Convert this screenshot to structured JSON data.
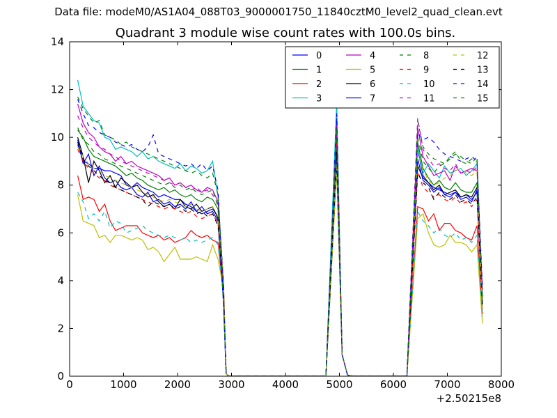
{
  "figure": {
    "suptitle": "Data file: modeM0/AS1A04_088T03_9000001750_11840cztM0_level2_quad_clean.evt"
  },
  "colors": {
    "blue": "#0000ff",
    "green": "#008000",
    "red": "#ff0000",
    "cyan": "#00bfbf",
    "magenta": "#bf00bf",
    "olive": "#bfbf00",
    "black": "#000000"
  },
  "chart_data": {
    "type": "line",
    "title": "Quadrant 3 module wise count rates with 100.0s bins.",
    "xlabel": "",
    "ylabel": "",
    "x_offset_label": "+2.50215e8",
    "xlim": [
      0,
      8000
    ],
    "ylim": [
      0,
      14
    ],
    "x_ticks": [
      0,
      1000,
      2000,
      3000,
      4000,
      5000,
      6000,
      7000,
      8000
    ],
    "y_ticks": [
      0,
      2,
      4,
      6,
      8,
      10,
      12,
      14
    ],
    "x_tick_labels": [
      "0",
      "1000",
      "2000",
      "3000",
      "4000",
      "5000",
      "6000",
      "7000",
      "8000"
    ],
    "y_tick_labels": [
      "0",
      "2",
      "4",
      "6",
      "8",
      "10",
      "12",
      "14"
    ],
    "legend_position": "top-right",
    "legend_columns": 4,
    "x": [
      150,
      250,
      350,
      450,
      550,
      650,
      750,
      850,
      950,
      1050,
      1150,
      1250,
      1350,
      1450,
      1550,
      1650,
      1750,
      1850,
      1950,
      2050,
      2150,
      2250,
      2350,
      2450,
      2550,
      2650,
      2750,
      2850,
      2950,
      3050,
      3150,
      3250,
      3350,
      3450,
      3550,
      3650,
      3750,
      3850,
      3950,
      4050,
      4150,
      4250,
      4350,
      4450,
      4550,
      4650,
      4750,
      4850,
      4950,
      5050,
      5150,
      5250,
      5350,
      5450,
      5550,
      5650,
      5750,
      5850,
      5950,
      6050,
      6150,
      6250,
      6350,
      6450,
      6550,
      6650,
      6750,
      6850,
      6950,
      7050,
      7150,
      7250,
      7350,
      7450,
      7550,
      7650
    ],
    "segments": {
      "active1": [
        150,
        2750
      ],
      "drop1_value": [
        4.0,
        0.1
      ],
      "quiet1": [
        2950,
        4750
      ],
      "peak_x": 4950,
      "post_peak_x": [
        5050,
        5150
      ],
      "quiet2": [
        5250,
        6250
      ],
      "active2": [
        6450,
        7550
      ],
      "end_x": 7650
    },
    "series": [
      {
        "name": "0",
        "color": "blue",
        "style": "solid",
        "active1": [
          9.7,
          9.0,
          8.9,
          8.7,
          8.7,
          8.6,
          8.6,
          8.5,
          8.4,
          8.0,
          7.9,
          8.1,
          7.9,
          7.8,
          7.7,
          7.5,
          7.6,
          7.5,
          7.4,
          7.4,
          7.2,
          7.1,
          6.9,
          6.8,
          6.9,
          7.0,
          6.7
        ],
        "peak": 10.8,
        "post_peak": [
          0.9,
          0.05
        ],
        "active2": [
          9.5,
          8.4,
          8.1,
          7.9,
          7.8,
          7.7,
          7.6,
          7.7,
          7.5,
          7.6,
          7.4,
          7.7
        ],
        "end": 3.0
      },
      {
        "name": "1",
        "color": "green",
        "style": "solid",
        "active1": [
          10.3,
          10.0,
          9.5,
          9.2,
          9.1,
          9.0,
          8.9,
          8.8,
          8.6,
          8.4,
          8.5,
          8.3,
          8.2,
          8.0,
          7.9,
          7.8,
          7.9,
          7.7,
          7.8,
          7.6,
          7.5,
          7.6,
          7.4,
          7.3,
          7.5,
          7.4,
          7.0
        ],
        "peak": 10.2,
        "post_peak": [
          0.9,
          0.05
        ],
        "active2": [
          9.8,
          8.7,
          8.3,
          8.0,
          8.2,
          7.9,
          7.8,
          8.1,
          7.8,
          7.7,
          7.7,
          8.1
        ],
        "end": 3.2
      },
      {
        "name": "2",
        "color": "red",
        "style": "solid",
        "active1": [
          8.4,
          7.4,
          7.5,
          7.4,
          6.9,
          7.2,
          6.5,
          6.1,
          6.2,
          6.3,
          6.3,
          6.3,
          6.0,
          5.9,
          5.8,
          5.9,
          5.7,
          5.8,
          5.6,
          5.7,
          5.8,
          6.1,
          5.9,
          5.8,
          5.9,
          5.7,
          5.6
        ],
        "peak": 9.5,
        "post_peak": [
          0.9,
          0.05
        ],
        "active2": [
          7.1,
          7.0,
          6.5,
          6.8,
          6.1,
          6.4,
          6.4,
          6.1,
          6.0,
          5.8,
          5.7,
          6.3
        ],
        "end": 2.6
      },
      {
        "name": "3",
        "color": "cyan",
        "style": "solid",
        "active1": [
          12.4,
          11.3,
          11.0,
          10.7,
          10.6,
          10.0,
          9.9,
          9.5,
          9.6,
          9.5,
          9.4,
          9.2,
          9.4,
          9.1,
          9.2,
          9.0,
          8.9,
          8.8,
          8.7,
          8.9,
          8.6,
          8.8,
          8.7,
          8.5,
          8.6,
          9.0,
          7.5
        ],
        "peak": 11.5,
        "post_peak": [
          0.9,
          0.05
        ],
        "active2": [
          9.6,
          8.5,
          8.9,
          8.6,
          8.3,
          8.8,
          8.5,
          8.6,
          8.7,
          8.4,
          8.6,
          8.9
        ],
        "end": 3.4
      },
      {
        "name": "4",
        "color": "magenta",
        "style": "solid",
        "active1": [
          11.4,
          10.6,
          10.2,
          10.0,
          9.6,
          9.4,
          9.3,
          9.0,
          9.2,
          8.9,
          9.0,
          8.8,
          8.7,
          8.6,
          8.5,
          8.4,
          8.2,
          8.3,
          8.0,
          8.1,
          7.9,
          8.0,
          7.8,
          7.7,
          7.9,
          7.8,
          7.3
        ],
        "peak": 10.5,
        "post_peak": [
          0.9,
          0.05
        ],
        "active2": [
          10.4,
          9.2,
          8.8,
          8.4,
          8.5,
          8.6,
          8.2,
          8.8,
          8.5,
          8.6,
          8.7,
          8.6
        ],
        "end": 3.6
      },
      {
        "name": "5",
        "color": "olive",
        "style": "solid",
        "active1": [
          7.6,
          6.5,
          6.4,
          6.3,
          5.8,
          5.9,
          5.6,
          5.9,
          5.9,
          5.8,
          5.7,
          5.8,
          5.7,
          5.3,
          5.4,
          5.2,
          4.8,
          5.1,
          5.4,
          4.9,
          4.9,
          4.9,
          5.0,
          4.9,
          4.8,
          5.5,
          4.9
        ],
        "peak": 8.6,
        "post_peak": [
          0.9,
          0.05
        ],
        "active2": [
          6.6,
          6.8,
          6.0,
          5.5,
          5.4,
          5.5,
          5.9,
          5.6,
          5.6,
          5.5,
          5.2,
          5.5
        ],
        "end": 2.2
      },
      {
        "name": "6",
        "color": "black",
        "style": "solid",
        "active1": [
          10.0,
          9.2,
          8.1,
          9.0,
          8.6,
          8.1,
          8.4,
          7.9,
          8.3,
          8.1,
          7.9,
          8.0,
          7.7,
          7.5,
          7.6,
          7.3,
          7.1,
          7.2,
          7.0,
          7.4,
          7.1,
          7.0,
          7.2,
          6.9,
          7.0,
          7.1,
          6.6
        ],
        "peak": 9.0,
        "post_peak": [
          0.9,
          0.05
        ],
        "active2": [
          8.8,
          8.3,
          8.1,
          7.8,
          8.0,
          7.6,
          7.7,
          7.8,
          7.5,
          7.6,
          7.5,
          7.9
        ],
        "end": 3.1
      },
      {
        "name": "7",
        "color": "blue",
        "style": "solid",
        "active1": [
          9.9,
          8.9,
          9.3,
          8.4,
          8.8,
          8.3,
          8.1,
          8.2,
          7.9,
          7.8,
          7.9,
          7.6,
          7.5,
          7.7,
          7.3,
          7.4,
          7.2,
          7.3,
          7.1,
          7.2,
          7.0,
          7.3,
          6.9,
          7.1,
          6.8,
          6.9,
          6.5
        ],
        "peak": 9.3,
        "post_peak": [
          0.9,
          0.05
        ],
        "active2": [
          9.1,
          8.2,
          8.0,
          7.7,
          7.9,
          7.6,
          7.5,
          7.7,
          7.4,
          7.5,
          7.3,
          7.8
        ],
        "end": 2.9
      },
      {
        "name": "8",
        "color": "green",
        "style": "dashed",
        "active1": [
          11.7,
          11.2,
          10.9,
          10.6,
          10.7,
          10.1,
          10.0,
          9.9,
          9.7,
          9.8,
          9.6,
          9.5,
          9.4,
          9.3,
          9.2,
          9.1,
          9.0,
          8.9,
          8.8,
          8.7,
          8.6,
          8.5,
          8.6,
          8.4,
          8.3,
          8.5,
          7.6
        ],
        "peak": 10.0,
        "post_peak": [
          0.9,
          0.05
        ],
        "active2": [
          10.7,
          9.6,
          9.3,
          9.1,
          9.0,
          8.9,
          9.2,
          9.4,
          9.0,
          8.9,
          9.1,
          9.0
        ],
        "end": 3.3
      },
      {
        "name": "9",
        "color": "red",
        "style": "dashed",
        "active1": [
          9.5,
          9.0,
          8.7,
          8.5,
          8.3,
          8.2,
          8.0,
          7.9,
          7.8,
          7.7,
          7.6,
          7.5,
          7.4,
          7.3,
          7.2,
          7.1,
          7.0,
          7.1,
          7.0,
          6.9,
          6.8,
          6.9,
          6.7,
          6.6,
          6.7,
          6.8,
          6.4
        ],
        "peak": 9.8,
        "post_peak": [
          0.9,
          0.05
        ],
        "active2": [
          8.6,
          7.9,
          7.7,
          7.5,
          7.6,
          7.4,
          7.3,
          7.5,
          7.2,
          7.3,
          7.1,
          7.4
        ],
        "end": 2.8
      },
      {
        "name": "10",
        "color": "cyan",
        "style": "dashed",
        "active1": [
          7.7,
          7.3,
          6.6,
          6.8,
          6.5,
          6.9,
          6.2,
          6.5,
          6.4,
          6.0,
          6.1,
          6.2,
          6.3,
          6.1,
          6.0,
          5.9,
          5.8,
          5.9,
          5.8,
          5.7,
          5.8,
          5.6,
          5.7,
          5.6,
          5.7,
          5.8,
          5.5
        ],
        "peak": 9.1,
        "post_peak": [
          0.9,
          0.05
        ],
        "active2": [
          6.9,
          6.5,
          6.3,
          6.0,
          6.2,
          5.9,
          5.8,
          6.0,
          5.7,
          5.8,
          5.6,
          5.9
        ],
        "end": 2.5
      },
      {
        "name": "11",
        "color": "magenta",
        "style": "dashed",
        "active1": [
          10.9,
          10.4,
          10.0,
          9.8,
          9.6,
          9.5,
          9.3,
          9.2,
          9.0,
          8.9,
          8.8,
          8.7,
          8.6,
          8.5,
          8.4,
          8.3,
          8.2,
          8.1,
          8.0,
          8.1,
          7.9,
          7.8,
          7.9,
          7.7,
          7.8,
          7.6,
          7.2
        ],
        "peak": 9.9,
        "post_peak": [
          0.9,
          0.05
        ],
        "active2": [
          10.8,
          9.5,
          9.1,
          8.8,
          8.9,
          8.7,
          8.6,
          8.9,
          8.5,
          8.6,
          8.5,
          8.8
        ],
        "end": 3.5
      },
      {
        "name": "12",
        "color": "olive",
        "style": "dashed",
        "active1": [
          9.6,
          9.2,
          8.9,
          8.7,
          8.6,
          8.4,
          8.3,
          8.2,
          8.1,
          8.0,
          7.9,
          7.8,
          7.7,
          7.6,
          7.5,
          7.4,
          7.3,
          7.4,
          7.3,
          7.2,
          7.1,
          7.2,
          7.0,
          6.9,
          7.0,
          7.1,
          6.7
        ],
        "peak": 8.9,
        "post_peak": [
          0.9,
          0.05
        ],
        "active2": [
          9.4,
          8.6,
          8.2,
          8.0,
          8.1,
          8.3,
          8.4,
          8.6,
          8.7,
          8.5,
          8.4,
          8.6
        ],
        "end": 2.7
      },
      {
        "name": "13",
        "color": "black",
        "style": "dashed",
        "active1": [
          9.8,
          9.1,
          8.8,
          8.6,
          8.4,
          8.2,
          8.1,
          7.9,
          7.8,
          7.7,
          7.6,
          7.5,
          7.4,
          7.1,
          7.3,
          7.2,
          7.1,
          7.2,
          7.0,
          7.1,
          6.9,
          7.0,
          6.8,
          6.9,
          6.7,
          6.8,
          6.3
        ],
        "peak": 9.4,
        "post_peak": [
          0.9,
          0.05
        ],
        "active2": [
          8.5,
          8.1,
          7.9,
          7.4,
          7.7,
          7.5,
          7.4,
          7.6,
          7.3,
          7.4,
          7.2,
          7.5
        ],
        "end": 3.0
      },
      {
        "name": "14",
        "color": "blue",
        "style": "dashed",
        "active1": [
          11.6,
          11.0,
          10.5,
          10.4,
          10.2,
          10.1,
          10.0,
          9.8,
          9.7,
          9.6,
          9.7,
          9.5,
          9.4,
          9.6,
          10.1,
          9.3,
          9.2,
          9.1,
          9.0,
          8.9,
          8.8,
          8.9,
          8.7,
          8.9,
          8.6,
          8.8,
          7.8
        ],
        "peak": 11.0,
        "post_peak": [
          0.9,
          0.05
        ],
        "active2": [
          10.2,
          9.9,
          10.0,
          9.8,
          9.5,
          9.3,
          9.2,
          9.1,
          9.0,
          9.1,
          9.2,
          9.0
        ],
        "end": 3.7
      },
      {
        "name": "15",
        "color": "green",
        "style": "dashed",
        "active1": [
          10.4,
          9.9,
          9.7,
          9.4,
          9.3,
          9.1,
          9.0,
          8.9,
          8.8,
          8.7,
          8.6,
          8.5,
          8.4,
          8.3,
          8.2,
          8.1,
          8.0,
          8.1,
          7.9,
          8.0,
          7.8,
          7.9,
          7.7,
          7.6,
          7.7,
          7.8,
          7.1
        ],
        "peak": 10.4,
        "post_peak": [
          0.9,
          0.05
        ],
        "active2": [
          10.0,
          9.0,
          8.7,
          8.5,
          8.8,
          8.9,
          9.1,
          9.3,
          9.2,
          9.0,
          8.9,
          9.2
        ],
        "end": 3.1
      }
    ]
  }
}
